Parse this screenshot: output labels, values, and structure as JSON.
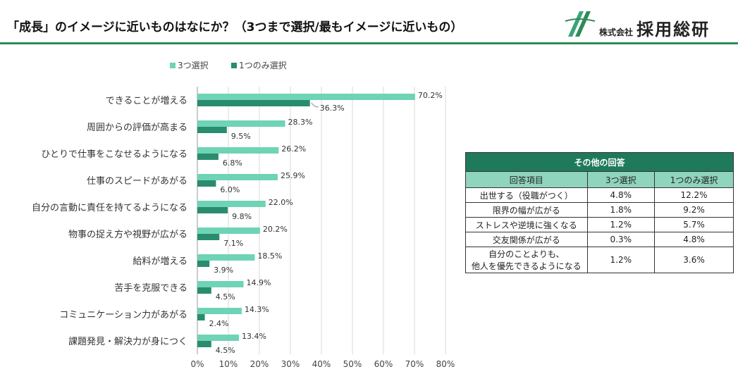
{
  "header": {
    "title": "「成長」のイメージに近いものはなにか？（3つまで選択/最もイメージに近いもの）",
    "logo_small": "株式会社",
    "logo_big": "採用総研"
  },
  "colors": {
    "series1": "#6fd3b5",
    "series2": "#2a8c6e",
    "accent": "#2e8b57"
  },
  "chart_data": {
    "type": "bar",
    "orientation": "horizontal",
    "categories": [
      "できることが増える",
      "周囲からの評価が高まる",
      "ひとりで仕事をこなせるようになる",
      "仕事のスピードがあがる",
      "自分の言動に責任を持てるようになる",
      "物事の捉え方や視野が広がる",
      "給料が増える",
      "苦手を克服できる",
      "コミュニケーション力があがる",
      "課題発見・解決力が身につく"
    ],
    "series": [
      {
        "name": "3つ選択",
        "values": [
          70.2,
          28.3,
          26.2,
          25.9,
          22.0,
          20.2,
          18.5,
          14.9,
          14.3,
          13.4
        ],
        "labels": [
          "70.2%",
          "28.3%",
          "26.2%",
          "25.9%",
          "22.0%",
          "20.2%",
          "18.5%",
          "14.9%",
          "14.3%",
          "13.4%"
        ]
      },
      {
        "name": "1つのみ選択",
        "values": [
          36.3,
          9.5,
          6.8,
          6.0,
          9.8,
          7.1,
          3.9,
          4.5,
          2.4,
          4.5
        ],
        "labels": [
          "36.3%",
          "9.5%",
          "6.8%",
          "6.0%",
          "9.8%",
          "7.1%",
          "3.9%",
          "4.5%",
          "2.4%",
          "4.5%"
        ]
      }
    ],
    "xlim": [
      0,
      80
    ],
    "xticks": [
      "0%",
      "10%",
      "20%",
      "30%",
      "40%",
      "50%",
      "60%",
      "70%",
      "80%"
    ],
    "legend_position": "top",
    "grid": true
  },
  "other_answers": {
    "title": "その他の回答",
    "headers": [
      "回答項目",
      "3つ選択",
      "1つのみ選択"
    ],
    "rows": [
      {
        "item": "出世する（役職がつく）",
        "v1": "4.8%",
        "v2": "12.2%"
      },
      {
        "item": "限界の幅が広がる",
        "v1": "1.8%",
        "v2": "9.2%"
      },
      {
        "item": "ストレスや逆境に強くなる",
        "v1": "1.2%",
        "v2": "5.7%"
      },
      {
        "item": "交友関係が広がる",
        "v1": "0.3%",
        "v2": "4.8%"
      },
      {
        "item_line1": "自分のことよりも、",
        "item_line2": "他人を優先できるようになる",
        "v1": "1.2%",
        "v2": "3.6%"
      }
    ]
  }
}
